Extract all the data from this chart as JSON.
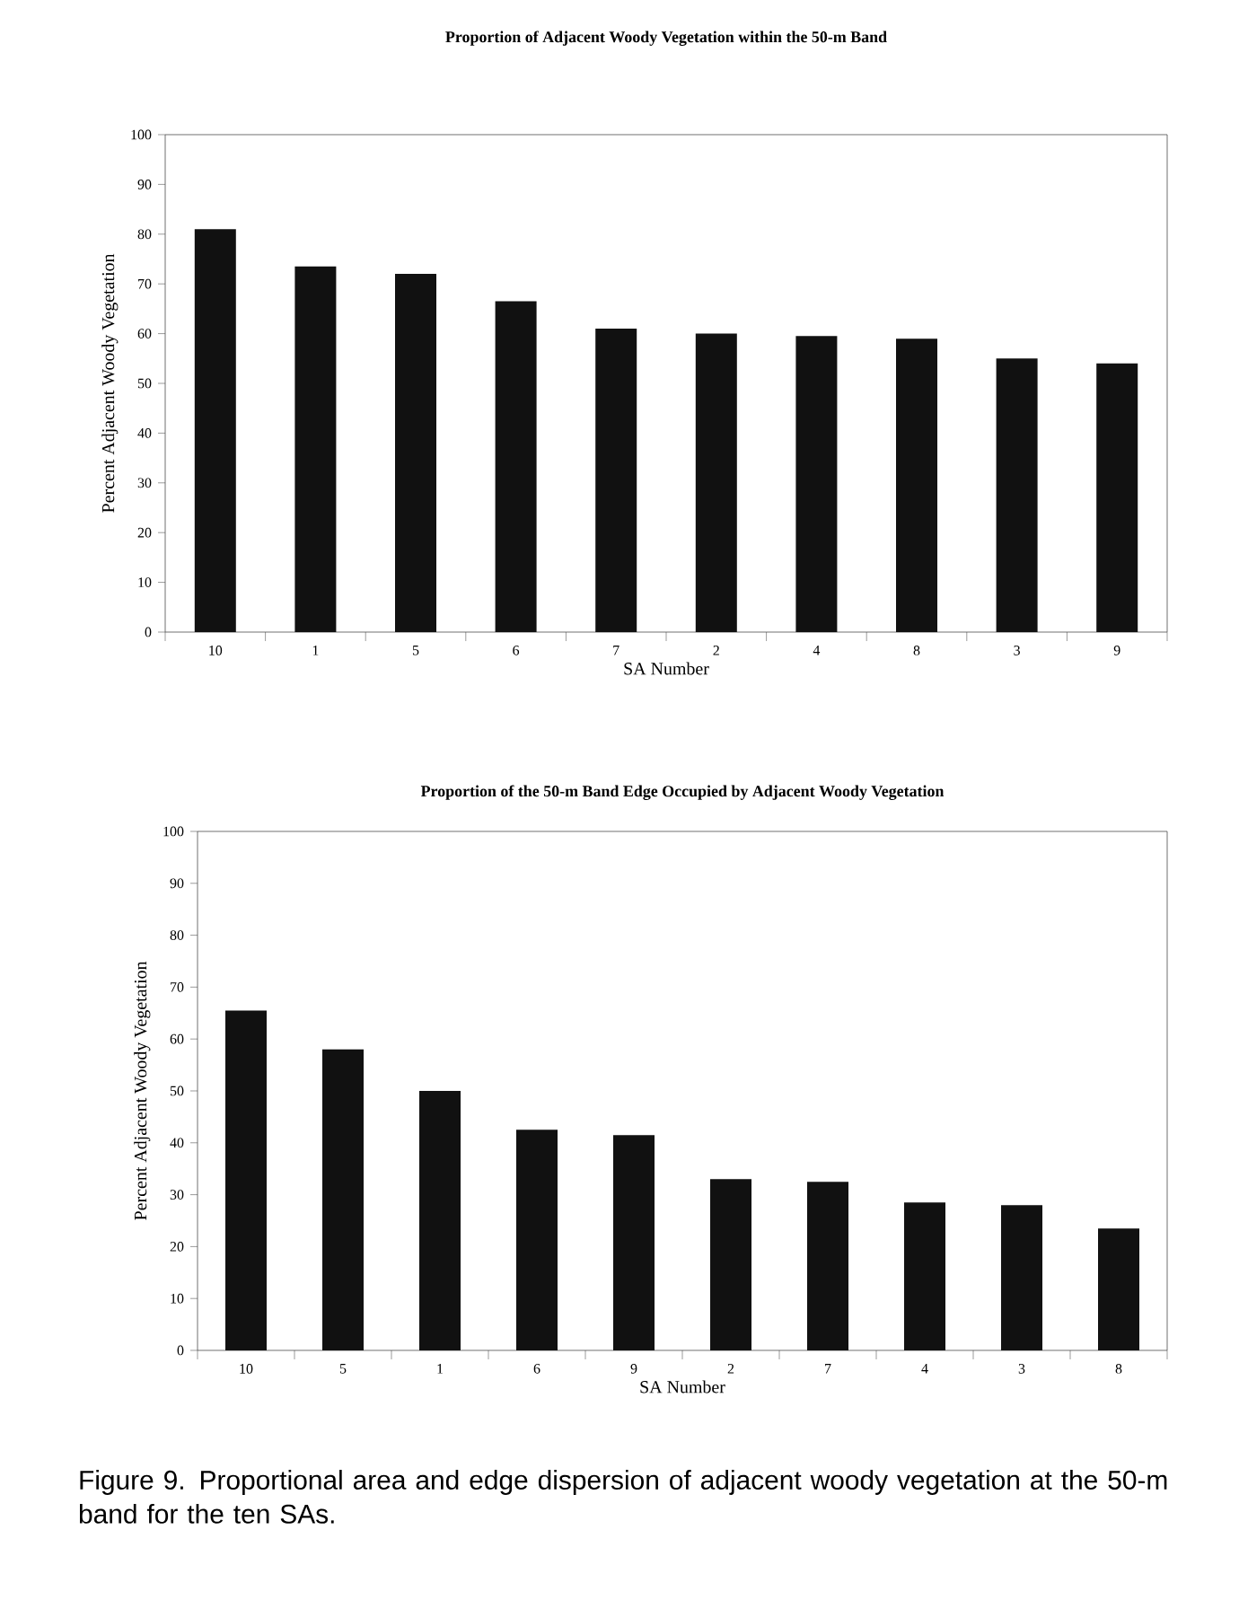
{
  "chart_data": [
    {
      "type": "bar",
      "title": "Proportion of Adjacent Woody Vegetation within the 50-m Band",
      "xlabel": "SA Number",
      "ylabel": "Percent Adjacent Woody Vegetation",
      "categories": [
        "10",
        "1",
        "5",
        "6",
        "7",
        "2",
        "4",
        "8",
        "3",
        "9"
      ],
      "values": [
        81,
        73.5,
        72,
        66.5,
        61,
        60,
        59.5,
        59,
        55,
        54
      ],
      "color": "#111111",
      "ylim": [
        0,
        100
      ],
      "yticks": [
        0,
        10,
        20,
        30,
        40,
        50,
        60,
        70,
        80,
        90,
        100
      ]
    },
    {
      "type": "bar",
      "title": "Proportion of the 50-m Band Edge Occupied by Adjacent Woody Vegetation",
      "xlabel": "SA Number",
      "ylabel": "Percent Adjacent Woody Vegetation",
      "categories": [
        "10",
        "5",
        "1",
        "6",
        "9",
        "2",
        "7",
        "4",
        "3",
        "8"
      ],
      "values": [
        65.5,
        58,
        50,
        42.5,
        41.5,
        33,
        32.5,
        28.5,
        28,
        23.5
      ],
      "color": "#111111",
      "ylim": [
        0,
        100
      ],
      "yticks": [
        0,
        10,
        20,
        30,
        40,
        50,
        60,
        70,
        80,
        90,
        100
      ],
      "annotations": [
        "Figure 9. Proportional area and edge dispersion of adjacent woody vegetation at the 50-m band for the ten SAs."
      ]
    }
  ]
}
